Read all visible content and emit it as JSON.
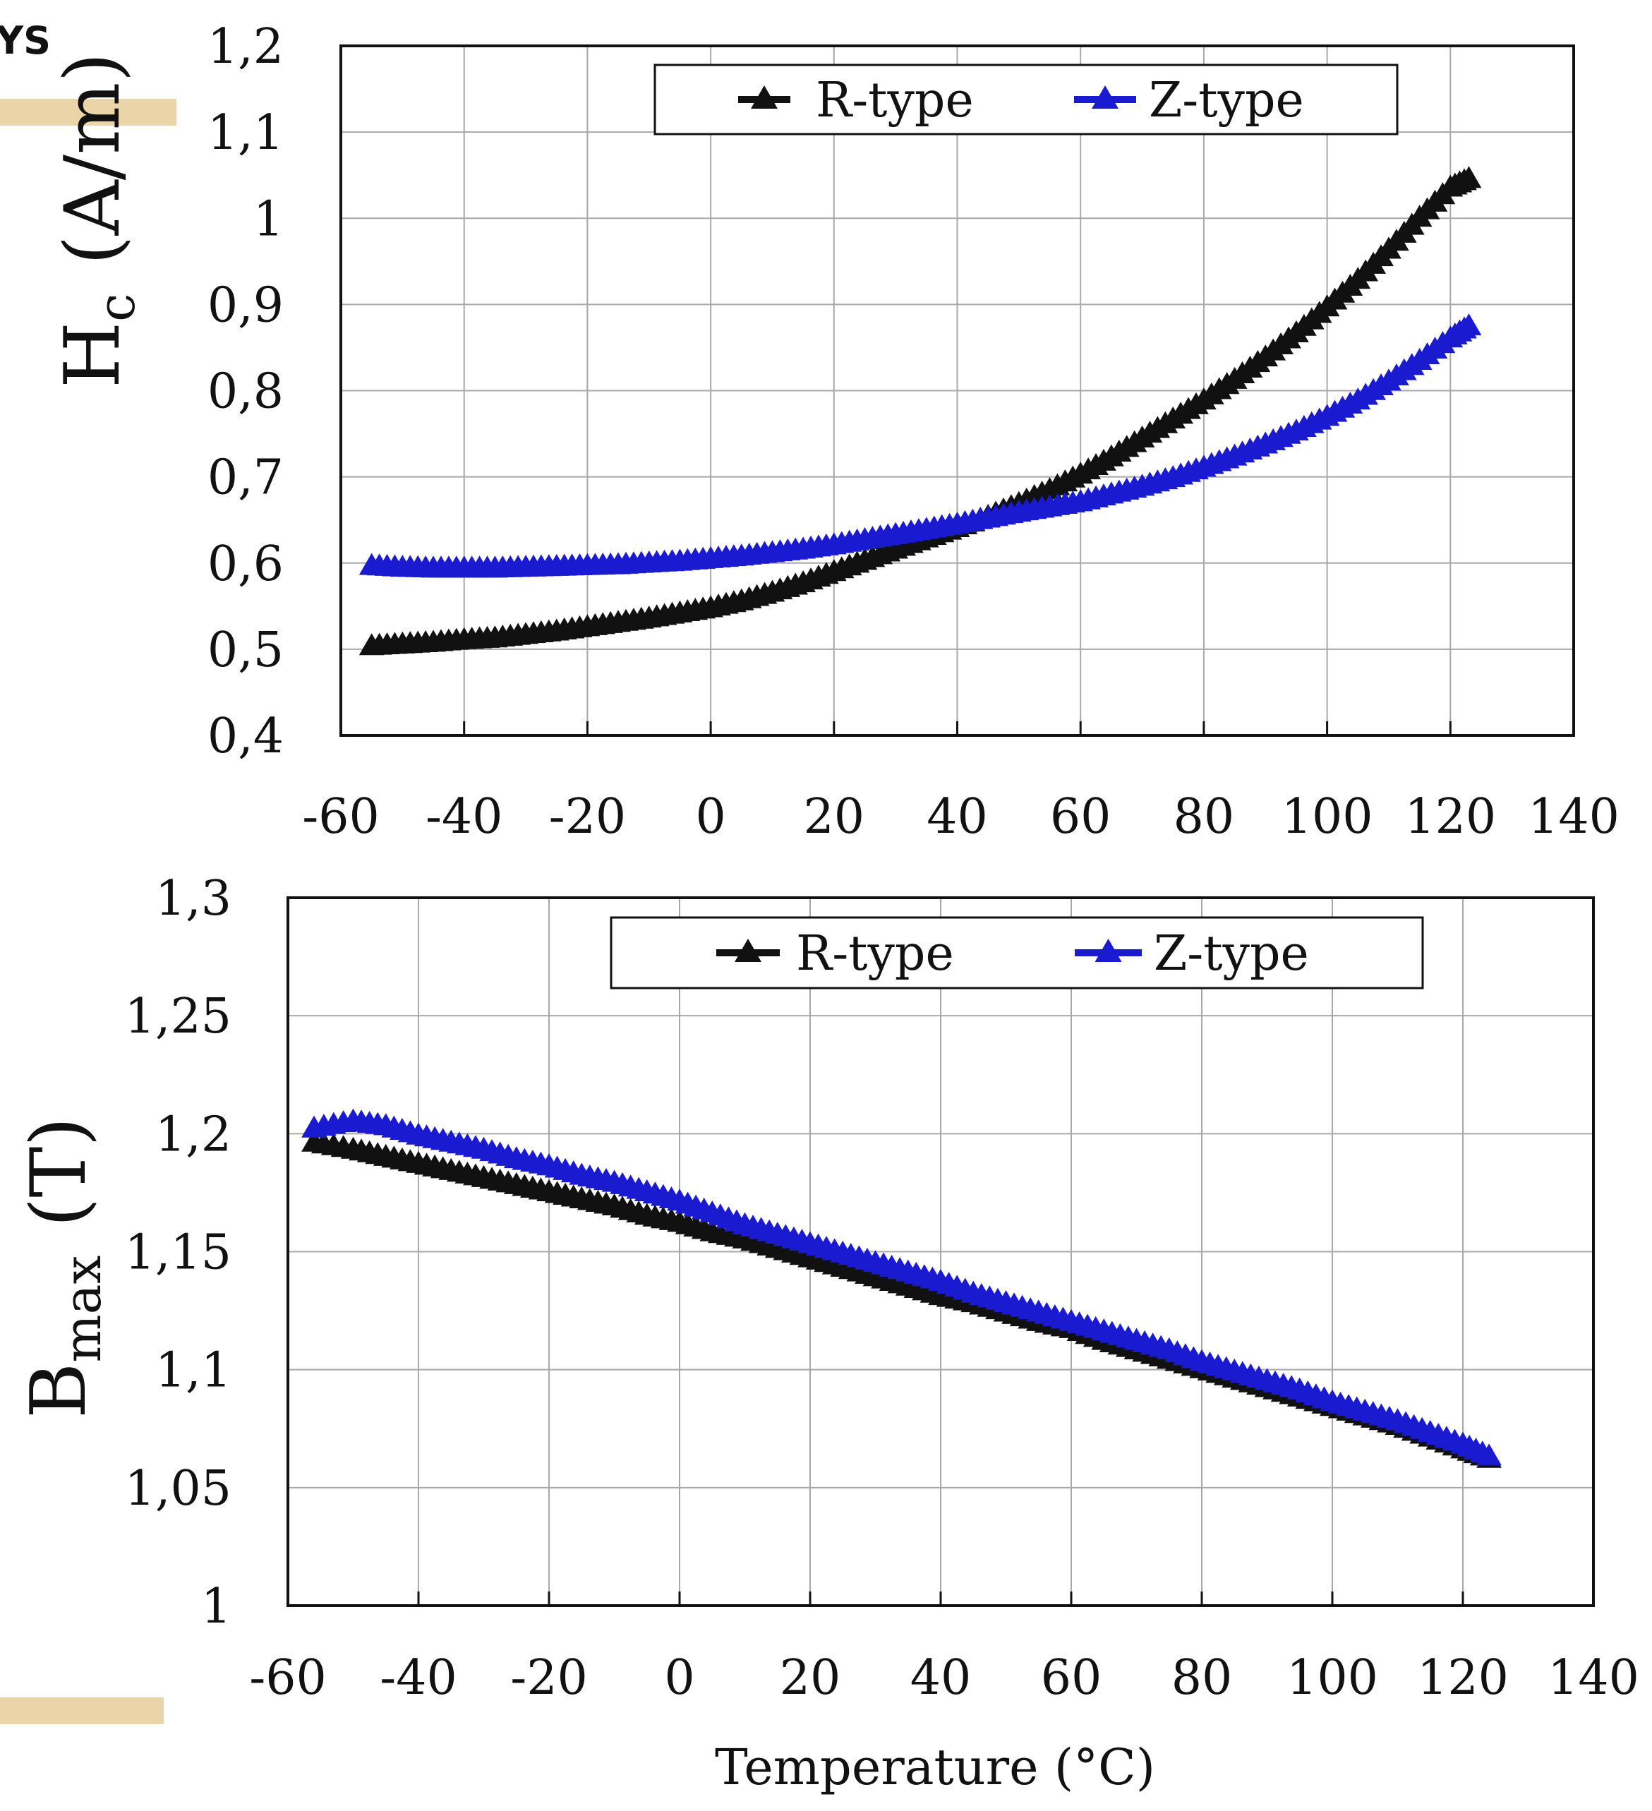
{
  "fragment": {
    "text": "YS",
    "bar_color": "#ead5a8"
  },
  "colors": {
    "r_type": "#111111",
    "z_type": "#1a1ad0"
  },
  "chart_data": [
    {
      "type": "line",
      "ylabel_main": "H",
      "ylabel_sub": "c",
      "ylabel_unit": "(A/m)",
      "xlabel": "",
      "xlim": [
        -60,
        140
      ],
      "ylim": [
        0.4,
        1.2
      ],
      "xticks": [
        "-60",
        "-40",
        "-20",
        "0",
        "20",
        "40",
        "60",
        "80",
        "100",
        "120",
        "140"
      ],
      "yticks": [
        "0,4",
        "0,5",
        "0,6",
        "0,7",
        "0,8",
        "0,9",
        "1",
        "1,1",
        "1,2"
      ],
      "grid": true,
      "legend_position": "top-center",
      "x": [
        -55,
        -50,
        -45,
        -40,
        -35,
        -30,
        -25,
        -20,
        -15,
        -10,
        -5,
        0,
        5,
        10,
        15,
        20,
        25,
        30,
        35,
        40,
        45,
        50,
        55,
        60,
        65,
        70,
        75,
        80,
        85,
        90,
        95,
        100,
        105,
        110,
        115,
        120,
        123
      ],
      "series": [
        {
          "name": "R-type",
          "color": "#111111",
          "values": [
            0.503,
            0.505,
            0.507,
            0.51,
            0.512,
            0.516,
            0.52,
            0.525,
            0.53,
            0.535,
            0.541,
            0.547,
            0.555,
            0.565,
            0.576,
            0.589,
            0.602,
            0.615,
            0.628,
            0.64,
            0.653,
            0.668,
            0.684,
            0.702,
            0.722,
            0.744,
            0.766,
            0.788,
            0.812,
            0.838,
            0.866,
            0.896,
            0.928,
            0.963,
            1.0,
            1.035,
            1.045
          ]
        },
        {
          "name": "Z-type",
          "color": "#1a1ad0",
          "values": [
            0.596,
            0.594,
            0.593,
            0.593,
            0.593,
            0.594,
            0.595,
            0.596,
            0.597,
            0.599,
            0.601,
            0.604,
            0.607,
            0.611,
            0.615,
            0.62,
            0.626,
            0.632,
            0.638,
            0.644,
            0.651,
            0.658,
            0.664,
            0.67,
            0.679,
            0.688,
            0.698,
            0.71,
            0.723,
            0.737,
            0.752,
            0.769,
            0.788,
            0.81,
            0.834,
            0.86,
            0.874
          ]
        }
      ]
    },
    {
      "type": "line",
      "ylabel_main": "B",
      "ylabel_sub": "max",
      "ylabel_unit": "(T)",
      "xlabel": "Temperature (°C)",
      "xlim": [
        -60,
        140
      ],
      "ylim": [
        1.0,
        1.3
      ],
      "xticks": [
        "-60",
        "-40",
        "-20",
        "0",
        "20",
        "40",
        "60",
        "80",
        "100",
        "120",
        "140"
      ],
      "yticks": [
        "1",
        "1,05",
        "1,1",
        "1,15",
        "1,2",
        "1,25",
        "1,3"
      ],
      "grid": true,
      "legend_position": "top-center",
      "x": [
        -56,
        -50,
        -45,
        -40,
        -35,
        -30,
        -25,
        -20,
        -15,
        -10,
        -5,
        0,
        5,
        10,
        15,
        20,
        25,
        30,
        35,
        40,
        45,
        50,
        55,
        60,
        65,
        70,
        75,
        80,
        85,
        90,
        95,
        100,
        105,
        110,
        115,
        120,
        124
      ],
      "series": [
        {
          "name": "R-type",
          "color": "#111111",
          "values": [
            1.196,
            1.193,
            1.19,
            1.187,
            1.184,
            1.181,
            1.178,
            1.175,
            1.172,
            1.169,
            1.165,
            1.162,
            1.158,
            1.155,
            1.151,
            1.147,
            1.143,
            1.139,
            1.135,
            1.131,
            1.128,
            1.124,
            1.12,
            1.117,
            1.112,
            1.108,
            1.104,
            1.1,
            1.096,
            1.092,
            1.088,
            1.084,
            1.08,
            1.076,
            1.071,
            1.066,
            1.062
          ]
        },
        {
          "name": "Z-type",
          "color": "#1a1ad0",
          "values": [
            1.202,
            1.205,
            1.203,
            1.199,
            1.196,
            1.193,
            1.189,
            1.186,
            1.182,
            1.179,
            1.175,
            1.171,
            1.166,
            1.161,
            1.157,
            1.153,
            1.149,
            1.145,
            1.141,
            1.137,
            1.132,
            1.128,
            1.124,
            1.12,
            1.116,
            1.112,
            1.108,
            1.103,
            1.099,
            1.095,
            1.091,
            1.086,
            1.082,
            1.078,
            1.073,
            1.068,
            1.063
          ]
        }
      ]
    }
  ]
}
